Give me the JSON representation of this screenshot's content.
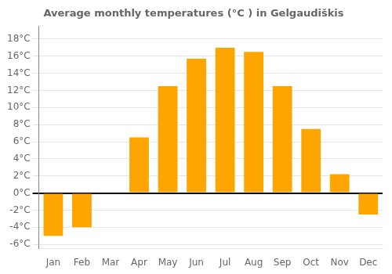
{
  "chart_data": {
    "type": "bar",
    "title": "Average monthly temperatures (°C ) in Gelgaudiškis",
    "categories": [
      "Jan",
      "Feb",
      "Mar",
      "Apr",
      "May",
      "Jun",
      "Jul",
      "Aug",
      "Sep",
      "Oct",
      "Nov",
      "Dec"
    ],
    "values": [
      -5.0,
      -4.0,
      0.0,
      6.5,
      12.5,
      15.7,
      17.0,
      16.5,
      12.5,
      7.5,
      2.2,
      -2.5
    ],
    "color": "#FFA500",
    "ylim": [
      -6.5,
      19.5
    ],
    "yticks": [
      {
        "value": -6,
        "label": "-6°C"
      },
      {
        "value": -4,
        "label": "-4°C"
      },
      {
        "value": -2,
        "label": "-2°C"
      },
      {
        "value": 0,
        "label": "0°C"
      },
      {
        "value": 2,
        "label": "2°C"
      },
      {
        "value": 4,
        "label": "4°C"
      },
      {
        "value": 6,
        "label": "6°C"
      },
      {
        "value": 8,
        "label": "8°C"
      },
      {
        "value": 10,
        "label": "10°C"
      },
      {
        "value": 12,
        "label": "12°C"
      },
      {
        "value": 14,
        "label": "14°C"
      },
      {
        "value": 16,
        "label": "16°C"
      },
      {
        "value": 18,
        "label": "18°C"
      }
    ],
    "grid": true
  }
}
